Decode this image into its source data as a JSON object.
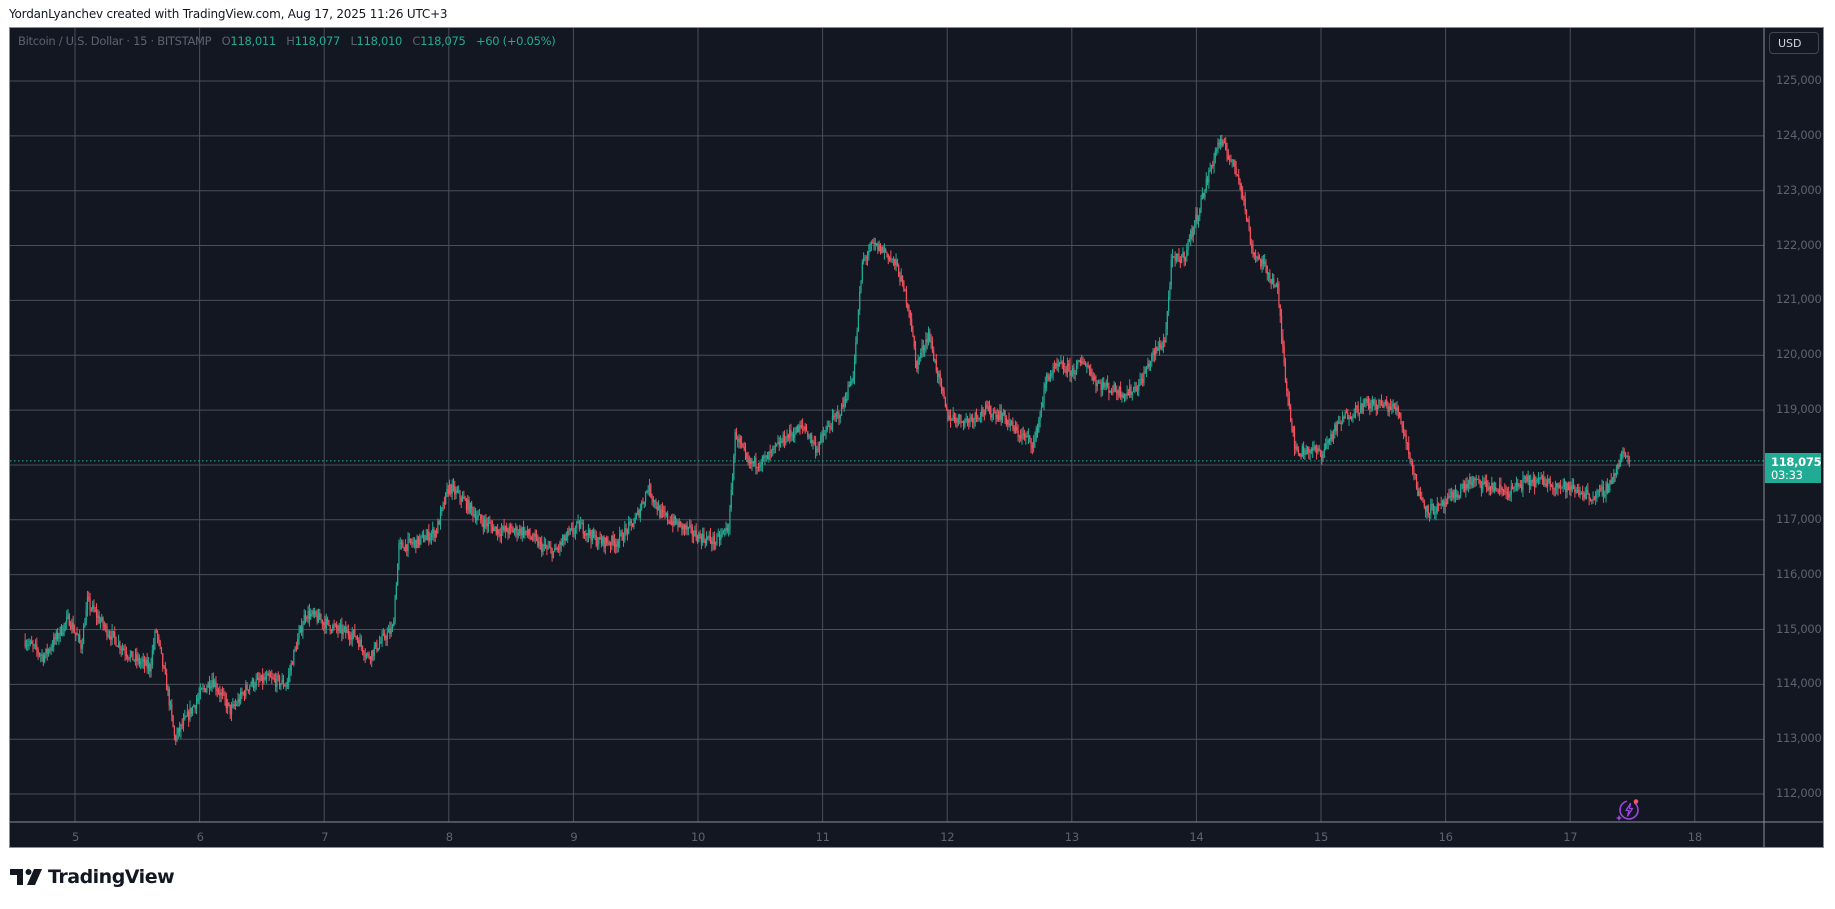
{
  "credit": "YordanLyanchev created with TradingView.com, Aug 17, 2025 11:26 UTC+3",
  "legend": {
    "symbol": "Bitcoin / U.S. Dollar · 15 · BITSTAMP",
    "open_label": "O",
    "open": "118,011",
    "high_label": "H",
    "high": "118,077",
    "low_label": "L",
    "low": "118,010",
    "close_label": "C",
    "close": "118,075",
    "change": "+60 (+0.05%)"
  },
  "currency_button": "USD",
  "price_tag": {
    "price": "118,075",
    "countdown": "03:33"
  },
  "logo": {
    "text": "TradingView",
    "icon": "tradingview-logo-icon"
  },
  "colors": {
    "background": "#131722",
    "grid": "#4a4e59",
    "up": "#22ab94",
    "down": "#f7525f",
    "axis_text": "#5d6270",
    "accent": "#22ab94",
    "spark": "#9c45e3"
  },
  "chart_data": {
    "type": "candlestick",
    "title": "Bitcoin / U.S. Dollar · 15 · BITSTAMP",
    "xlabel": "",
    "ylabel": "USD",
    "ylim": [
      111700,
      125250
    ],
    "y_ticks": [
      112000,
      113000,
      114000,
      115000,
      116000,
      117000,
      118000,
      119000,
      120000,
      121000,
      122000,
      123000,
      124000,
      125000
    ],
    "y_tick_labels": [
      "112,000",
      "113,000",
      "114,000",
      "115,000",
      "116,000",
      "117,000",
      "118,000",
      "119,000",
      "120,000",
      "121,000",
      "122,000",
      "123,000",
      "124,000",
      "125,000"
    ],
    "x_ticks": [
      5,
      6,
      7,
      8,
      9,
      10,
      11,
      12,
      13,
      14,
      15,
      16,
      17,
      18
    ],
    "x_tick_labels": [
      "5",
      "6",
      "7",
      "8",
      "9",
      "10",
      "11",
      "12",
      "13",
      "14",
      "15",
      "16",
      "17",
      "18"
    ],
    "grid": true,
    "last_price": 118075,
    "path": [
      [
        4.6,
        114800
      ],
      [
        4.75,
        114500
      ],
      [
        4.95,
        115200
      ],
      [
        5.05,
        114700
      ],
      [
        5.1,
        115500
      ],
      [
        5.25,
        115000
      ],
      [
        5.45,
        114500
      ],
      [
        5.6,
        114300
      ],
      [
        5.65,
        115000
      ],
      [
        5.75,
        113800
      ],
      [
        5.8,
        113000
      ],
      [
        5.9,
        113400
      ],
      [
        6.0,
        113800
      ],
      [
        6.1,
        114100
      ],
      [
        6.25,
        113500
      ],
      [
        6.4,
        114000
      ],
      [
        6.55,
        114100
      ],
      [
        6.7,
        114000
      ],
      [
        6.75,
        114500
      ],
      [
        6.85,
        115300
      ],
      [
        6.95,
        115200
      ],
      [
        7.1,
        115000
      ],
      [
        7.25,
        114900
      ],
      [
        7.35,
        114500
      ],
      [
        7.5,
        114900
      ],
      [
        7.55,
        115000
      ],
      [
        7.6,
        116500
      ],
      [
        7.75,
        116600
      ],
      [
        7.9,
        116800
      ],
      [
        8.0,
        117600
      ],
      [
        8.1,
        117400
      ],
      [
        8.25,
        117000
      ],
      [
        8.4,
        116800
      ],
      [
        8.6,
        116800
      ],
      [
        8.75,
        116500
      ],
      [
        8.85,
        116400
      ],
      [
        8.95,
        116700
      ],
      [
        9.05,
        116900
      ],
      [
        9.2,
        116600
      ],
      [
        9.35,
        116600
      ],
      [
        9.5,
        117000
      ],
      [
        9.6,
        117600
      ],
      [
        9.7,
        117100
      ],
      [
        9.85,
        116900
      ],
      [
        10.0,
        116700
      ],
      [
        10.15,
        116600
      ],
      [
        10.25,
        116900
      ],
      [
        10.3,
        118600
      ],
      [
        10.4,
        118000
      ],
      [
        10.55,
        118100
      ],
      [
        10.7,
        118500
      ],
      [
        10.85,
        118700
      ],
      [
        10.95,
        118300
      ],
      [
        11.05,
        118700
      ],
      [
        11.15,
        119000
      ],
      [
        11.25,
        119700
      ],
      [
        11.32,
        121700
      ],
      [
        11.4,
        122000
      ],
      [
        11.5,
        121900
      ],
      [
        11.6,
        121600
      ],
      [
        11.7,
        120800
      ],
      [
        11.75,
        119800
      ],
      [
        11.85,
        120400
      ],
      [
        11.95,
        119400
      ],
      [
        12.0,
        118900
      ],
      [
        12.15,
        118800
      ],
      [
        12.3,
        119000
      ],
      [
        12.45,
        118900
      ],
      [
        12.55,
        118600
      ],
      [
        12.7,
        118400
      ],
      [
        12.8,
        119600
      ],
      [
        12.9,
        119800
      ],
      [
        13.0,
        119700
      ],
      [
        13.1,
        119900
      ],
      [
        13.2,
        119500
      ],
      [
        13.3,
        119400
      ],
      [
        13.45,
        119300
      ],
      [
        13.55,
        119500
      ],
      [
        13.65,
        120000
      ],
      [
        13.75,
        120300
      ],
      [
        13.8,
        121700
      ],
      [
        13.9,
        121800
      ],
      [
        14.0,
        122500
      ],
      [
        14.1,
        123300
      ],
      [
        14.18,
        123900
      ],
      [
        14.25,
        123700
      ],
      [
        14.35,
        123200
      ],
      [
        14.45,
        121900
      ],
      [
        14.55,
        121600
      ],
      [
        14.65,
        121200
      ],
      [
        14.72,
        119500
      ],
      [
        14.8,
        118200
      ],
      [
        14.9,
        118300
      ],
      [
        15.0,
        118200
      ],
      [
        15.1,
        118600
      ],
      [
        15.2,
        118900
      ],
      [
        15.35,
        119100
      ],
      [
        15.5,
        119100
      ],
      [
        15.62,
        119000
      ],
      [
        15.7,
        118300
      ],
      [
        15.78,
        117500
      ],
      [
        15.85,
        117200
      ],
      [
        15.95,
        117200
      ],
      [
        16.05,
        117400
      ],
      [
        16.2,
        117700
      ],
      [
        16.35,
        117600
      ],
      [
        16.5,
        117500
      ],
      [
        16.65,
        117700
      ],
      [
        16.8,
        117700
      ],
      [
        16.95,
        117600
      ],
      [
        17.1,
        117500
      ],
      [
        17.2,
        117400
      ],
      [
        17.3,
        117600
      ],
      [
        17.37,
        117900
      ],
      [
        17.42,
        118200
      ],
      [
        17.48,
        118075
      ]
    ]
  }
}
